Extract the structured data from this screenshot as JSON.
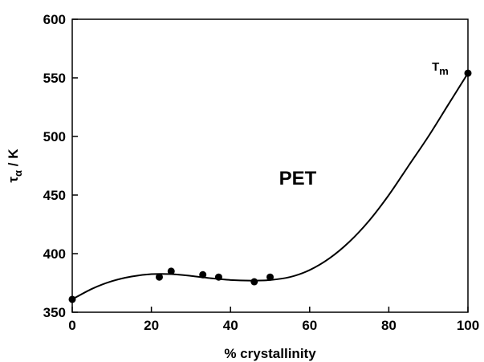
{
  "chart_data": {
    "type": "scatter",
    "title": "",
    "xlabel": "% crystallinity",
    "ylabel": "τα / K",
    "xlim": [
      0,
      100
    ],
    "ylim": [
      350,
      600
    ],
    "xticks": [
      0,
      20,
      40,
      60,
      80,
      100
    ],
    "yticks": [
      350,
      400,
      450,
      500,
      550,
      600
    ],
    "grid": false,
    "series": [
      {
        "kind": "points",
        "x": [
          0,
          22,
          25,
          33,
          37,
          46,
          50,
          100
        ],
        "y": [
          361,
          380,
          385,
          382,
          380,
          376,
          380,
          554
        ]
      },
      {
        "kind": "fit-curve",
        "x": [
          0,
          5,
          10,
          15,
          20,
          25,
          30,
          35,
          40,
          45,
          50,
          55,
          60,
          65,
          70,
          75,
          80,
          85,
          90,
          95,
          100
        ],
        "y": [
          361,
          370,
          376.5,
          380.5,
          382.5,
          382.5,
          381,
          379,
          377.5,
          377,
          377.5,
          380,
          386,
          396,
          410,
          428,
          450,
          475,
          500,
          527,
          554
        ]
      }
    ],
    "annotations": [
      {
        "text": "PET",
        "x": 57,
        "y": 465
      },
      {
        "text": "T",
        "subscript": "m",
        "x": 93,
        "y": 556
      }
    ]
  }
}
